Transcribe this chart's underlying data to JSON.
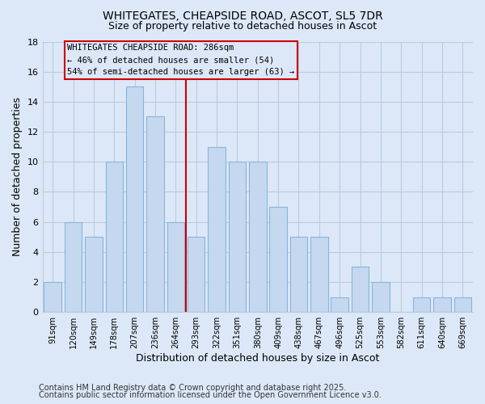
{
  "title": "WHITEGATES, CHEAPSIDE ROAD, ASCOT, SL5 7DR",
  "subtitle": "Size of property relative to detached houses in Ascot",
  "xlabel": "Distribution of detached houses by size in Ascot",
  "ylabel": "Number of detached properties",
  "footer_line1": "Contains HM Land Registry data © Crown copyright and database right 2025.",
  "footer_line2": "Contains public sector information licensed under the Open Government Licence v3.0.",
  "categories": [
    "91sqm",
    "120sqm",
    "149sqm",
    "178sqm",
    "207sqm",
    "236sqm",
    "264sqm",
    "293sqm",
    "322sqm",
    "351sqm",
    "380sqm",
    "409sqm",
    "438sqm",
    "467sqm",
    "496sqm",
    "525sqm",
    "553sqm",
    "582sqm",
    "611sqm",
    "640sqm",
    "669sqm"
  ],
  "values": [
    2,
    6,
    5,
    10,
    15,
    13,
    6,
    5,
    11,
    10,
    10,
    7,
    5,
    5,
    1,
    3,
    2,
    0,
    1,
    1,
    1
  ],
  "bar_color": "#c5d8f0",
  "bar_edge_color": "#89b4d9",
  "vline_color": "#cc0000",
  "annotation_box_text": "WHITEGATES CHEAPSIDE ROAD: 286sqm\n← 46% of detached houses are smaller (54)\n54% of semi-detached houses are larger (63) →",
  "ylim": [
    0,
    18
  ],
  "yticks": [
    0,
    2,
    4,
    6,
    8,
    10,
    12,
    14,
    16,
    18
  ],
  "bg_color": "#dce8f8",
  "plot_bg_color": "#dce8f8",
  "grid_color": "#b8ccdf",
  "title_fontsize": 10,
  "subtitle_fontsize": 9,
  "annotation_fontsize": 7.5,
  "footer_fontsize": 7
}
